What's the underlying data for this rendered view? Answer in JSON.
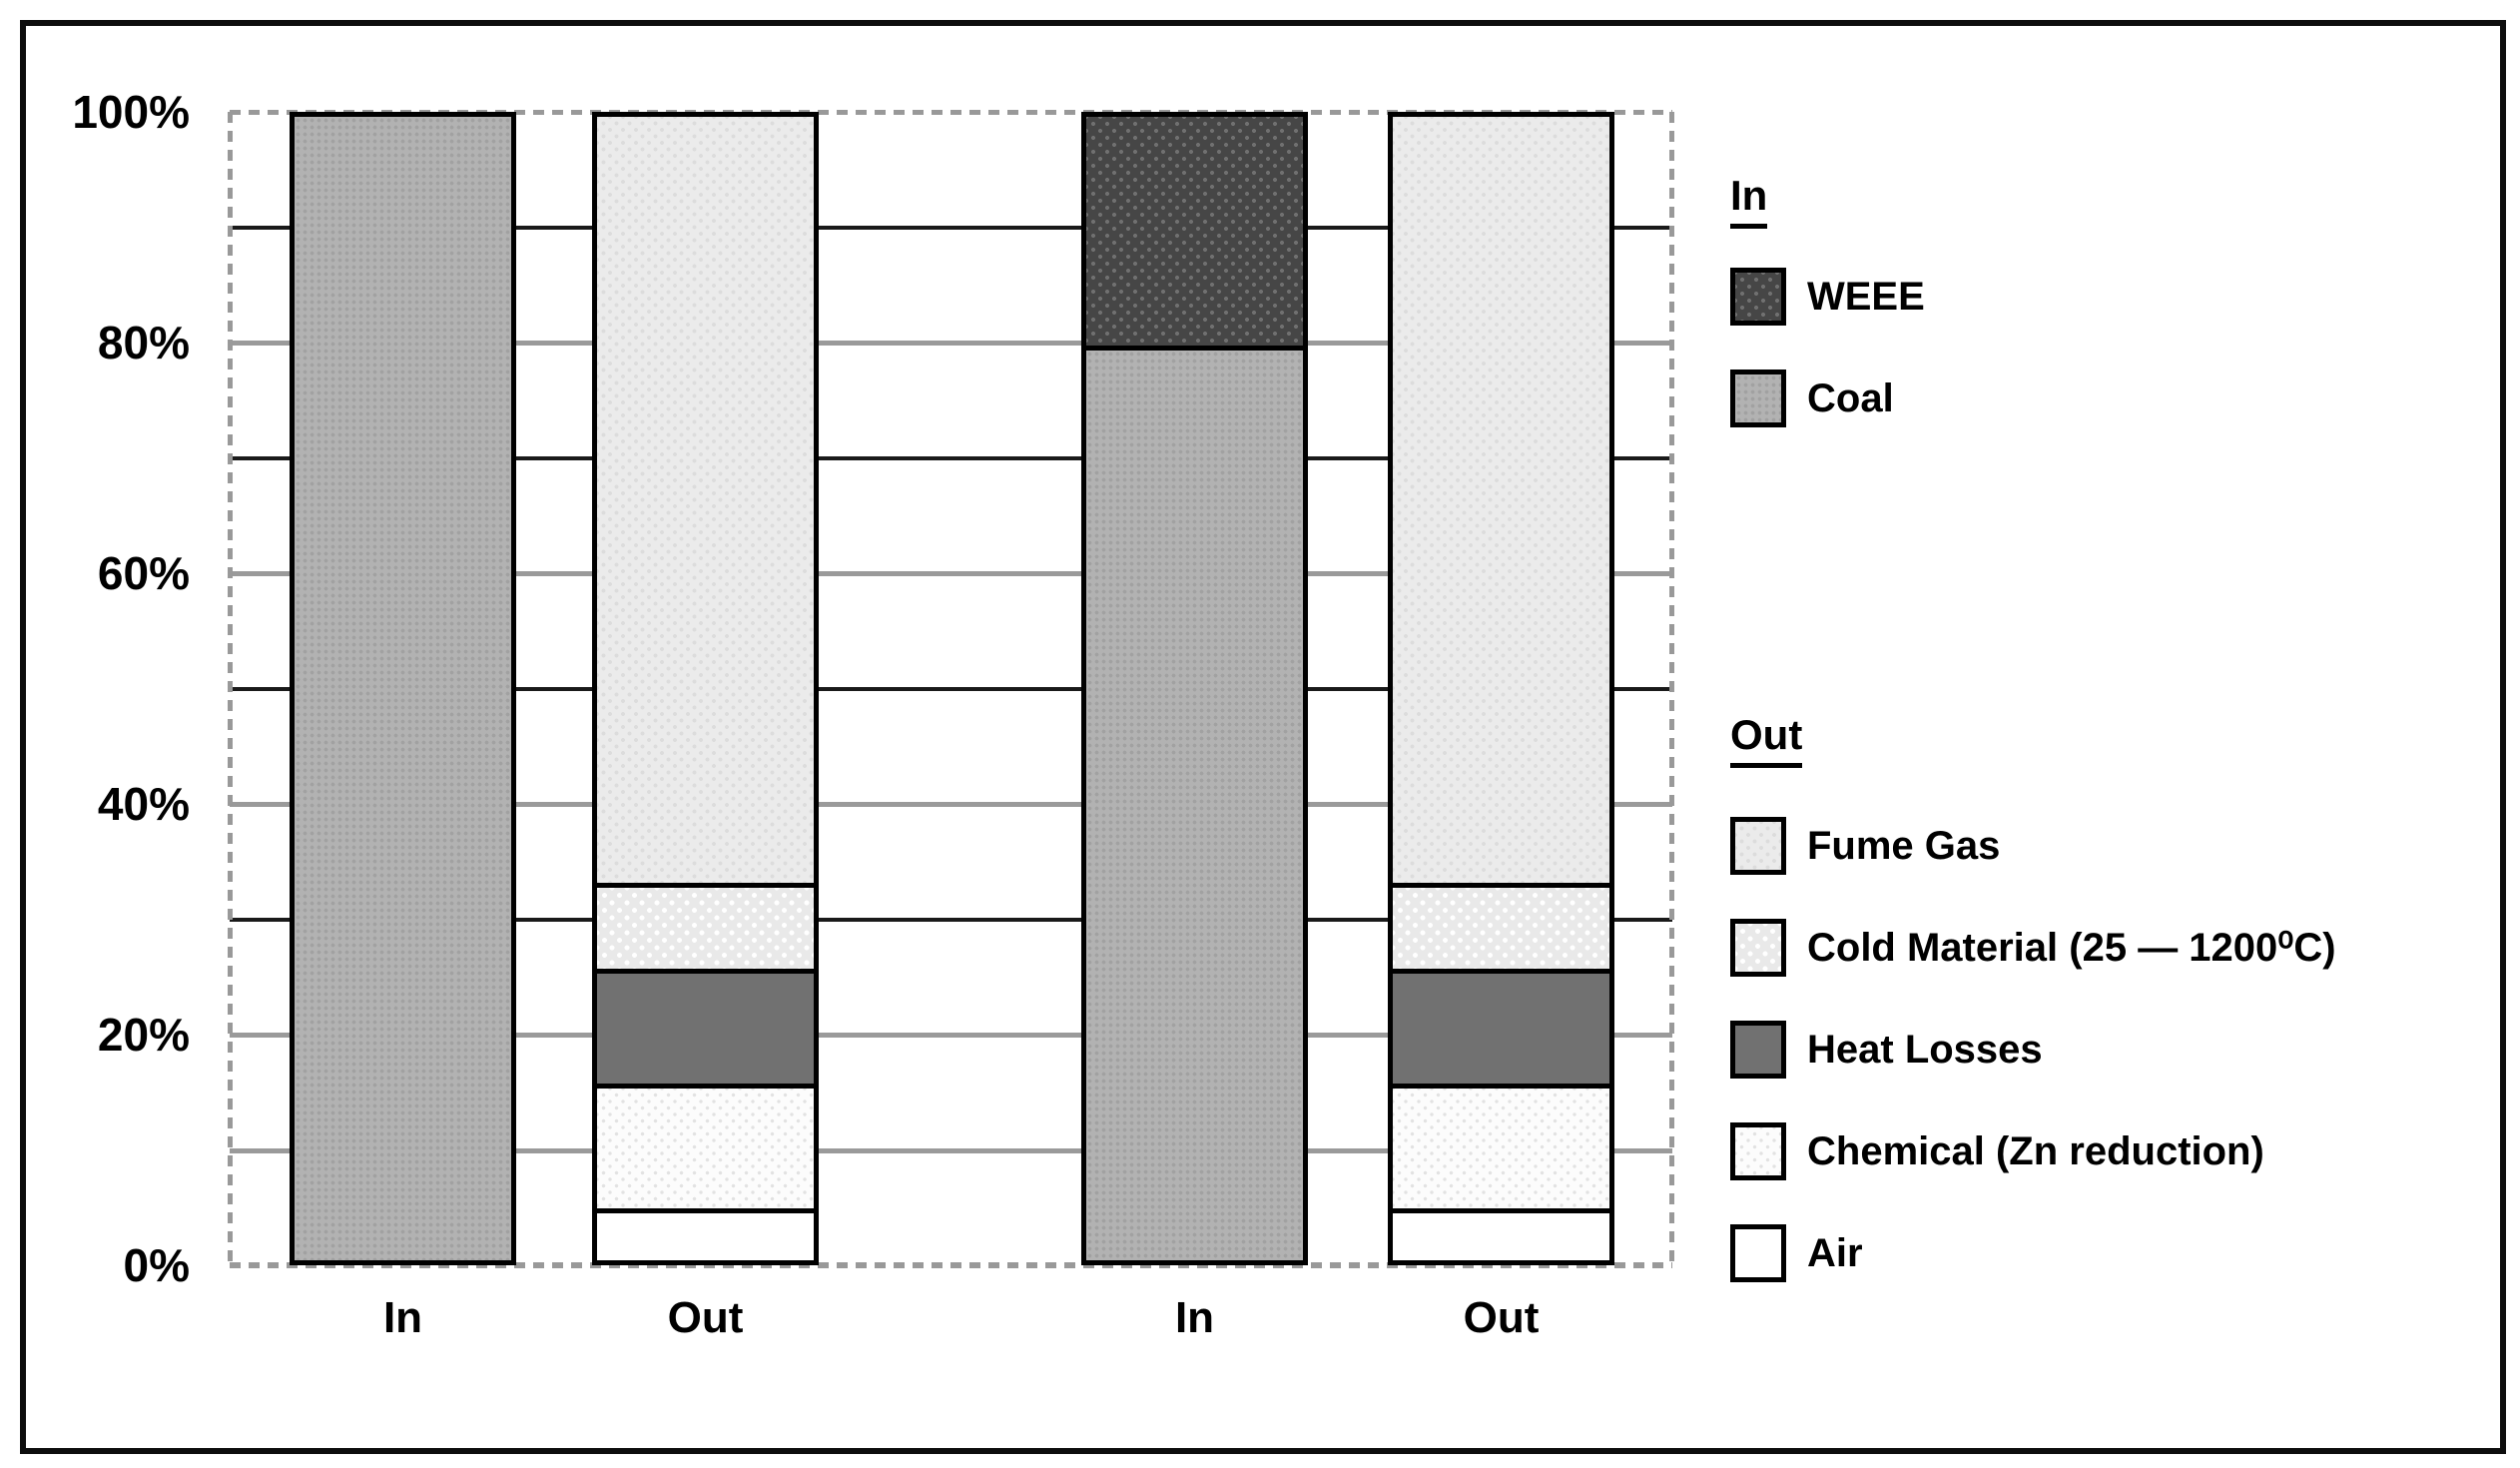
{
  "figure": {
    "background": "#ffffff",
    "border_color": "#0d0d0d"
  },
  "y_axis": {
    "min": 0,
    "max": 100,
    "grid_step": 10,
    "label_step": 20,
    "tick_labels": [
      "100%",
      "80%",
      "60%",
      "40%",
      "20%",
      "0%"
    ],
    "tick_values": [
      100,
      80,
      60,
      40,
      20,
      0
    ]
  },
  "x_axis": {
    "labels": [
      "In",
      "Out",
      "In",
      "Out"
    ]
  },
  "chart_data": {
    "type": "bar",
    "stacked": true,
    "unit": "%",
    "ylim": [
      0,
      100
    ],
    "grid": true,
    "legend_position": "right",
    "categories": [
      "In",
      "Out",
      "In",
      "Out"
    ],
    "series": [
      {
        "name": "WEEE",
        "pattern": "weee",
        "values": [
          0,
          0,
          20,
          0
        ]
      },
      {
        "name": "Coal",
        "pattern": "coal",
        "values": [
          100,
          0,
          80,
          0
        ]
      },
      {
        "name": "Fume Gas",
        "pattern": "fume",
        "values": [
          0,
          67,
          0,
          67
        ]
      },
      {
        "name": "Cold Material (25 — 1200⁰C)",
        "pattern": "cold",
        "values": [
          0,
          7.5,
          0,
          7.5
        ]
      },
      {
        "name": "Heat Losses",
        "pattern": "heat",
        "values": [
          0,
          10,
          0,
          10
        ]
      },
      {
        "name": "Chemical (Zn reduction)",
        "pattern": "chem",
        "values": [
          0,
          11,
          0,
          11
        ]
      },
      {
        "name": "Air",
        "pattern": "air",
        "values": [
          0,
          4.5,
          0,
          4.5
        ]
      }
    ],
    "bars": [
      {
        "label": "In",
        "segments": [
          {
            "name": "Coal",
            "pattern": "coal",
            "value": 100
          }
        ]
      },
      {
        "label": "Out",
        "segments": [
          {
            "name": "Air",
            "pattern": "air",
            "value": 4.5
          },
          {
            "name": "Chemical (Zn reduction)",
            "pattern": "chem",
            "value": 11
          },
          {
            "name": "Heat Losses",
            "pattern": "heat",
            "value": 10
          },
          {
            "name": "Cold Material (25 — 1200⁰C)",
            "pattern": "cold",
            "value": 7.5
          },
          {
            "name": "Fume Gas",
            "pattern": "fume",
            "value": 67
          }
        ]
      },
      {
        "label": "In",
        "segments": [
          {
            "name": "Coal",
            "pattern": "coal",
            "value": 80
          },
          {
            "name": "WEEE",
            "pattern": "weee",
            "value": 20
          }
        ]
      },
      {
        "label": "Out",
        "segments": [
          {
            "name": "Air",
            "pattern": "air",
            "value": 4.5
          },
          {
            "name": "Chemical (Zn reduction)",
            "pattern": "chem",
            "value": 11
          },
          {
            "name": "Heat Losses",
            "pattern": "heat",
            "value": 10
          },
          {
            "name": "Cold Material (25 — 1200⁰C)",
            "pattern": "cold",
            "value": 7.5
          },
          {
            "name": "Fume Gas",
            "pattern": "fume",
            "value": 67
          }
        ]
      }
    ]
  },
  "legend": {
    "groups": [
      {
        "title": "In",
        "items": [
          {
            "label": "WEEE",
            "pattern": "weee"
          },
          {
            "label": "Coal",
            "pattern": "coal"
          }
        ]
      },
      {
        "title": "Out",
        "items": [
          {
            "label": "Fume Gas",
            "pattern": "fume"
          },
          {
            "label": "Cold Material (25 — 1200⁰C)",
            "pattern": "cold"
          },
          {
            "label": "Heat Losses",
            "pattern": "heat"
          },
          {
            "label": "Chemical (Zn reduction)",
            "pattern": "chem"
          },
          {
            "label": "Air",
            "pattern": "air"
          }
        ]
      }
    ]
  },
  "colors": {
    "coal_base": "#b2b2b2",
    "coal_dot": "#a1a1a1",
    "weee_base": "#464646",
    "weee_dot": "#707070",
    "fume_base": "#ebebeb",
    "fume_dot": "#dcdcdc",
    "cold_base": "#e9e9e9",
    "cold_dot": "#ffffff",
    "heat_base": "#717171",
    "chem_base": "#fcfcfc",
    "chem_dot": "#e2e2e2",
    "air_base": "#ffffff",
    "grid_major": "#9a9a9a",
    "grid_minor": "#1a1a1a",
    "segment_border": "#000000"
  }
}
